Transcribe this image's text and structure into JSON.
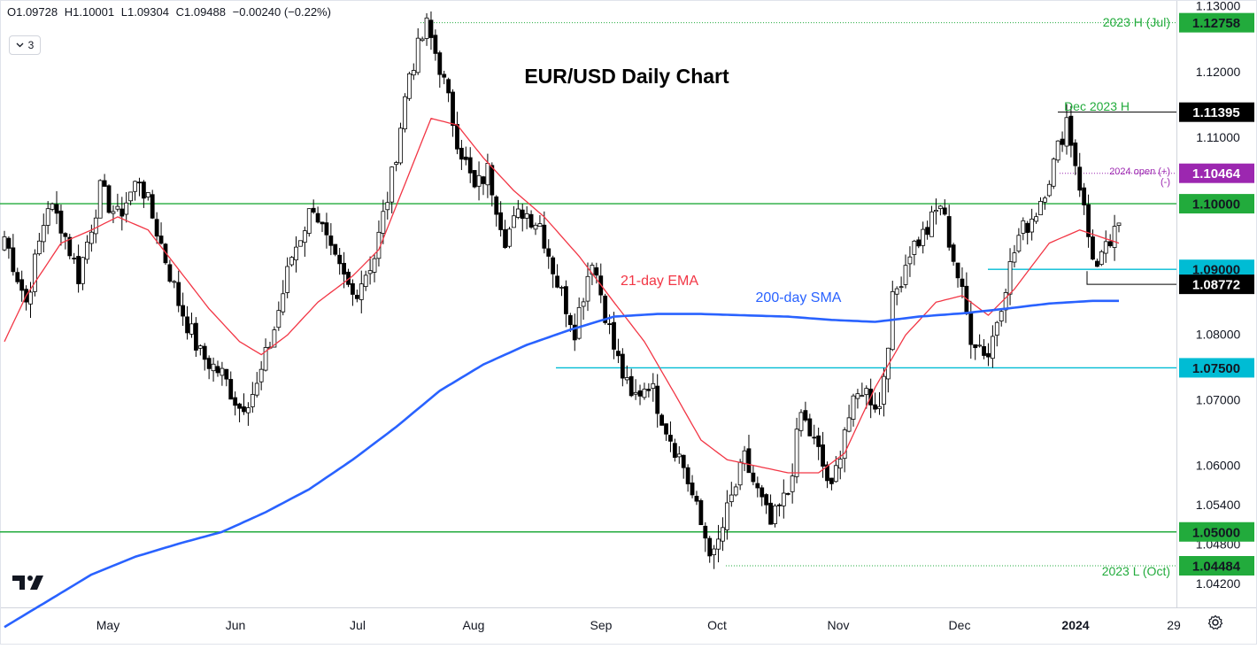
{
  "ohlc": {
    "open": "O1.09728",
    "high": "H1.10001",
    "low": "L1.09304",
    "close": "C1.09488",
    "change": "−0.00240 (−0.22%)"
  },
  "indicators_toggle": {
    "count": "3"
  },
  "colors": {
    "up": "#ffffff",
    "down": "#000000",
    "ema": "#f23645",
    "sma": "#2962ff",
    "green_level": "#22ab3c",
    "cyan_level": "#00bcd4",
    "purple_level": "#9c27b0",
    "black_label": "#000000"
  },
  "chart_data": {
    "type": "candlestick",
    "title": "EUR/USD Daily Chart",
    "ylim": [
      1.0385,
      1.1305
    ],
    "y_ticks": [
      "1.13000",
      "1.12000",
      "1.11000",
      "1.09000",
      "1.08000",
      "1.07000",
      "1.06000",
      "1.05400",
      "1.04800",
      "1.04200"
    ],
    "x_ticks": [
      "May",
      "Jun",
      "Jul",
      "Aug",
      "Sep",
      "Oct",
      "Nov",
      "Dec",
      "2024",
      "29"
    ],
    "annotations": {
      "ema_label": "21-day EMA",
      "sma_label": "200-day SMA",
      "h2023": "2023 H (Jul)",
      "dec_h": "Dec 2023 H",
      "open_plus": "2024 open (+)",
      "open_minus": "(-)",
      "l2023": "2023 L (Oct)"
    },
    "levels": [
      {
        "price": 1.12758,
        "label": "1.12758",
        "style": "green"
      },
      {
        "price": 1.11395,
        "label": "1.11395",
        "style": "black"
      },
      {
        "price": 1.10464,
        "label": "1.10464",
        "style": "purple"
      },
      {
        "price": 1.1,
        "label": "1.10000",
        "style": "green"
      },
      {
        "price": 1.09,
        "label": "1.09000",
        "style": "cyan"
      },
      {
        "price": 1.08772,
        "label": "1.08772",
        "style": "black"
      },
      {
        "price": 1.075,
        "label": "1.07500",
        "style": "cyan"
      },
      {
        "price": 1.05,
        "label": "1.05000",
        "style": "green"
      },
      {
        "price": 1.04484,
        "label": "1.04484",
        "style": "green"
      }
    ],
    "waypoints": [
      [
        0,
        1.095
      ],
      [
        5,
        1.085
      ],
      [
        10,
        1.1
      ],
      [
        13,
        1.097
      ],
      [
        17,
        1.089
      ],
      [
        22,
        1.102
      ],
      [
        26,
        1.098
      ],
      [
        31,
        1.104
      ],
      [
        35,
        1.096
      ],
      [
        40,
        1.085
      ],
      [
        45,
        1.077
      ],
      [
        50,
        1.074
      ],
      [
        54,
        1.069
      ],
      [
        58,
        1.072
      ],
      [
        62,
        1.081
      ],
      [
        66,
        1.092
      ],
      [
        71,
        1.1
      ],
      [
        75,
        1.092
      ],
      [
        80,
        1.086
      ],
      [
        85,
        1.092
      ],
      [
        89,
        1.104
      ],
      [
        93,
        1.12
      ],
      [
        97,
        1.127
      ],
      [
        100,
        1.121
      ],
      [
        104,
        1.11
      ],
      [
        108,
        1.102
      ],
      [
        111,
        1.105
      ],
      [
        115,
        1.095
      ],
      [
        119,
        1.099
      ],
      [
        123,
        1.097
      ],
      [
        127,
        1.088
      ],
      [
        131,
        1.081
      ],
      [
        135,
        1.092
      ],
      [
        140,
        1.078
      ],
      [
        144,
        1.07
      ],
      [
        148,
        1.073
      ],
      [
        152,
        1.066
      ],
      [
        156,
        1.06
      ],
      [
        160,
        1.051
      ],
      [
        163,
        1.046
      ],
      [
        166,
        1.053
      ],
      [
        170,
        1.061
      ],
      [
        173,
        1.056
      ],
      [
        176,
        1.051
      ],
      [
        180,
        1.056
      ],
      [
        183,
        1.068
      ],
      [
        187,
        1.062
      ],
      [
        190,
        1.056
      ],
      [
        193,
        1.066
      ],
      [
        197,
        1.072
      ],
      [
        201,
        1.069
      ],
      [
        204,
        1.085
      ],
      [
        208,
        1.093
      ],
      [
        212,
        1.096
      ],
      [
        215,
        1.1
      ],
      [
        219,
        1.089
      ],
      [
        222,
        1.08
      ],
      [
        226,
        1.077
      ],
      [
        230,
        1.088
      ],
      [
        233,
        1.095
      ],
      [
        237,
        1.099
      ],
      [
        241,
        1.106
      ],
      [
        244,
        1.113
      ],
      [
        247,
        1.103
      ],
      [
        249,
        1.095
      ],
      [
        251,
        1.09
      ],
      [
        254,
        1.094
      ],
      [
        256,
        1.096
      ]
    ],
    "ema_points": [
      [
        0,
        1.079
      ],
      [
        5,
        1.086
      ],
      [
        13,
        1.094
      ],
      [
        20,
        1.096
      ],
      [
        26,
        1.098
      ],
      [
        33,
        1.096
      ],
      [
        40,
        1.09
      ],
      [
        47,
        1.084
      ],
      [
        54,
        1.079
      ],
      [
        59,
        1.077
      ],
      [
        65,
        1.08
      ],
      [
        72,
        1.085
      ],
      [
        80,
        1.089
      ],
      [
        86,
        1.093
      ],
      [
        92,
        1.103
      ],
      [
        98,
        1.113
      ],
      [
        104,
        1.112
      ],
      [
        110,
        1.107
      ],
      [
        117,
        1.102
      ],
      [
        124,
        1.098
      ],
      [
        132,
        1.092
      ],
      [
        140,
        1.085
      ],
      [
        147,
        1.079
      ],
      [
        154,
        1.071
      ],
      [
        160,
        1.064
      ],
      [
        166,
        1.061
      ],
      [
        173,
        1.06
      ],
      [
        180,
        1.059
      ],
      [
        187,
        1.059
      ],
      [
        193,
        1.062
      ],
      [
        200,
        1.072
      ],
      [
        207,
        1.08
      ],
      [
        214,
        1.085
      ],
      [
        220,
        1.086
      ],
      [
        226,
        1.083
      ],
      [
        232,
        1.087
      ],
      [
        240,
        1.094
      ],
      [
        247,
        1.096
      ],
      [
        256,
        1.094
      ]
    ],
    "sma_points": [
      [
        0,
        1.0355
      ],
      [
        10,
        1.0395
      ],
      [
        20,
        1.0435
      ],
      [
        30,
        1.0462
      ],
      [
        40,
        1.0482
      ],
      [
        50,
        1.05
      ],
      [
        60,
        1.053
      ],
      [
        70,
        1.0565
      ],
      [
        80,
        1.061
      ],
      [
        90,
        1.066
      ],
      [
        100,
        1.0715
      ],
      [
        110,
        1.0755
      ],
      [
        120,
        1.0785
      ],
      [
        130,
        1.0808
      ],
      [
        140,
        1.0828
      ],
      [
        150,
        1.0832
      ],
      [
        160,
        1.0832
      ],
      [
        170,
        1.083
      ],
      [
        180,
        1.0828
      ],
      [
        190,
        1.0823
      ],
      [
        200,
        1.082
      ],
      [
        210,
        1.0828
      ],
      [
        220,
        1.0833
      ],
      [
        230,
        1.084
      ],
      [
        240,
        1.0848
      ],
      [
        250,
        1.0852
      ],
      [
        256,
        1.0852
      ]
    ]
  }
}
